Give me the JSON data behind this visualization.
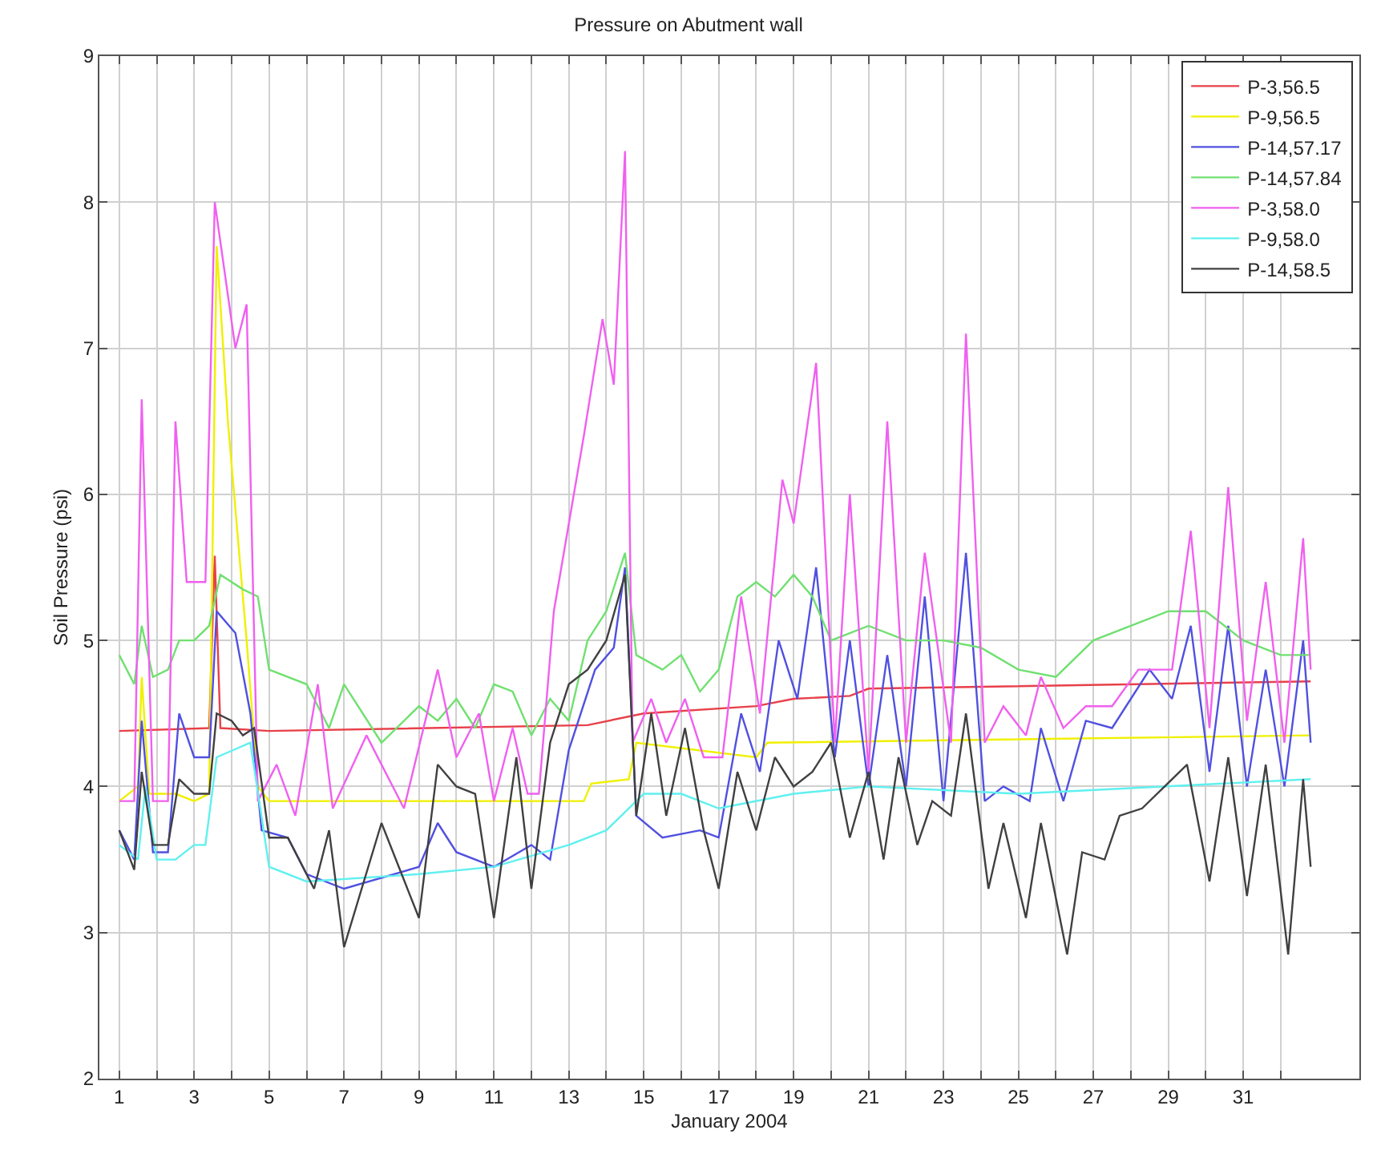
{
  "chart_data": {
    "type": "line",
    "title": "Pressure on Abutment wall",
    "xlabel": "January 2004",
    "ylabel": "Soil Pressure (psi)",
    "xlim": [
      0.47,
      34.1
    ],
    "ylim": [
      2,
      9
    ],
    "yticks": [
      2,
      3,
      4,
      5,
      6,
      7,
      8,
      9
    ],
    "xticks": [
      1,
      {
        "value": 2,
        "label": null
      },
      3,
      {
        "value": 4,
        "label": null
      },
      5,
      {
        "value": 6,
        "label": null
      },
      7,
      {
        "value": 8,
        "label": null
      },
      9,
      {
        "value": 10,
        "label": null
      },
      11,
      {
        "value": 12,
        "label": null
      },
      13,
      {
        "value": 14,
        "label": null
      },
      15,
      {
        "value": 16,
        "label": null
      },
      17,
      {
        "value": 18,
        "label": null
      },
      19,
      {
        "value": 20,
        "label": null
      },
      21,
      {
        "value": 22,
        "label": null
      },
      23,
      {
        "value": 24,
        "label": null
      },
      25,
      {
        "value": 26,
        "label": null
      },
      27,
      {
        "value": 28,
        "label": null
      },
      29,
      {
        "value": 30,
        "label": null
      },
      31,
      {
        "value": 32,
        "label": null
      }
    ],
    "grid": true,
    "legend": "top right",
    "marker": "none",
    "line_style": "solid",
    "series": [
      {
        "name": "P-3,56.5",
        "color": "#e8404a",
        "x": [
          1,
          3.4,
          3.55,
          3.7,
          5,
          13.5,
          15,
          18,
          19,
          20.5,
          21,
          32.8
        ],
        "values": [
          4.38,
          4.4,
          5.58,
          4.4,
          4.38,
          4.42,
          4.5,
          4.55,
          4.6,
          4.62,
          4.67,
          4.72
        ]
      },
      {
        "name": "P-9,56.5",
        "color": "#f0f000",
        "x": [
          1,
          1.5,
          1.6,
          1.8,
          2.5,
          3,
          3.4,
          3.6,
          3.9,
          4.4,
          4.7,
          5,
          13.4,
          13.6,
          14.6,
          14.8,
          18,
          18.3,
          32.8
        ],
        "values": [
          3.9,
          4.0,
          4.75,
          3.95,
          3.95,
          3.9,
          3.95,
          7.7,
          6.5,
          5.0,
          4.0,
          3.9,
          3.9,
          4.02,
          4.05,
          4.3,
          4.2,
          4.3,
          4.35
        ]
      },
      {
        "name": "P-14,57.17",
        "color": "#5050e0",
        "x": [
          1,
          1.4,
          1.6,
          1.9,
          2.3,
          2.6,
          3,
          3.4,
          3.6,
          4.1,
          4.5,
          4.8,
          5.5,
          6,
          7,
          9,
          9.5,
          10,
          11,
          12,
          12.5,
          13,
          13.7,
          14.2,
          14.5,
          14.8,
          15.5,
          16.5,
          17,
          17.6,
          18.1,
          18.6,
          19.1,
          19.6,
          20.1,
          20.5,
          21,
          21.5,
          22,
          22.5,
          23,
          23.6,
          24.1,
          24.6,
          25.3,
          25.6,
          26.2,
          26.8,
          27.5,
          28.5,
          29.1,
          29.6,
          30.1,
          30.6,
          31.1,
          31.6,
          32.1,
          32.6,
          32.8
        ],
        "values": [
          3.7,
          3.5,
          4.45,
          3.55,
          3.55,
          4.5,
          4.2,
          4.2,
          5.2,
          5.05,
          4.5,
          3.7,
          3.65,
          3.4,
          3.3,
          3.45,
          3.75,
          3.55,
          3.45,
          3.6,
          3.5,
          4.25,
          4.8,
          4.95,
          5.5,
          3.8,
          3.65,
          3.7,
          3.65,
          4.5,
          4.1,
          5.0,
          4.6,
          5.5,
          4.2,
          5.0,
          4.0,
          4.9,
          4.0,
          5.3,
          3.9,
          5.6,
          3.9,
          4.0,
          3.9,
          4.4,
          3.9,
          4.45,
          4.4,
          4.8,
          4.6,
          5.1,
          4.1,
          5.1,
          4.0,
          4.8,
          4.0,
          5.0,
          4.3
        ]
      },
      {
        "name": "P-14,57.84",
        "color": "#70e070",
        "x": [
          1,
          1.4,
          1.6,
          1.9,
          2.3,
          2.6,
          3,
          3.4,
          3.7,
          4.3,
          4.7,
          5,
          6,
          6.6,
          7,
          8,
          9,
          9.5,
          10,
          10.5,
          11,
          11.5,
          12,
          12.5,
          13,
          13.5,
          14,
          14.5,
          14.8,
          15.5,
          16,
          16.5,
          17,
          17.5,
          18,
          18.5,
          19,
          19.5,
          20,
          21,
          22,
          23,
          24,
          25,
          26,
          27,
          28,
          29,
          30,
          31,
          32,
          32.8
        ],
        "values": [
          4.9,
          4.7,
          5.1,
          4.75,
          4.8,
          5.0,
          5.0,
          5.1,
          5.45,
          5.35,
          5.3,
          4.8,
          4.7,
          4.4,
          4.7,
          4.3,
          4.55,
          4.45,
          4.6,
          4.4,
          4.7,
          4.65,
          4.35,
          4.6,
          4.45,
          5.0,
          5.2,
          5.6,
          4.9,
          4.8,
          4.9,
          4.65,
          4.8,
          5.3,
          5.4,
          5.3,
          5.45,
          5.3,
          5.0,
          5.1,
          5.0,
          5.0,
          4.95,
          4.8,
          4.75,
          5.0,
          5.1,
          5.2,
          5.2,
          5.0,
          4.9,
          4.9
        ]
      },
      {
        "name": "P-3,58.0",
        "color": "#f060f0",
        "x": [
          1,
          1.4,
          1.6,
          1.9,
          2.3,
          2.5,
          2.8,
          3.3,
          3.55,
          4.1,
          4.4,
          4.7,
          5.2,
          5.7,
          6.3,
          6.7,
          7.6,
          8.6,
          9.5,
          10,
          10.6,
          11,
          11.5,
          11.9,
          12.2,
          12.6,
          13.4,
          13.9,
          14.2,
          14.5,
          14.7,
          15.2,
          15.6,
          16.1,
          16.6,
          17.1,
          17.6,
          18.1,
          18.7,
          19,
          19.6,
          20.1,
          20.5,
          21,
          21.5,
          22,
          22.5,
          23.2,
          23.6,
          24.1,
          24.6,
          25.2,
          25.6,
          26.2,
          26.8,
          27.5,
          28.2,
          29.1,
          29.6,
          30.1,
          30.6,
          31.1,
          31.6,
          32.1,
          32.6,
          32.8
        ],
        "values": [
          3.9,
          3.9,
          6.65,
          3.9,
          3.9,
          6.5,
          5.4,
          5.4,
          8.0,
          7.0,
          7.3,
          3.9,
          4.15,
          3.8,
          4.7,
          3.85,
          4.35,
          3.85,
          4.8,
          4.2,
          4.5,
          3.9,
          4.4,
          3.95,
          3.95,
          5.2,
          6.4,
          7.2,
          6.75,
          8.35,
          4.3,
          4.6,
          4.3,
          4.6,
          4.2,
          4.2,
          5.3,
          4.5,
          6.1,
          5.8,
          6.9,
          4.3,
          6.0,
          4.1,
          6.5,
          4.3,
          5.6,
          4.3,
          7.1,
          4.3,
          4.55,
          4.35,
          4.75,
          4.4,
          4.55,
          4.55,
          4.8,
          4.8,
          5.75,
          4.4,
          6.05,
          4.45,
          5.4,
          4.3,
          5.7,
          4.8
        ]
      },
      {
        "name": "P-9,58.0",
        "color": "#60f0f0",
        "x": [
          1,
          1.5,
          1.7,
          2,
          2.5,
          3,
          3.3,
          3.6,
          4.5,
          5,
          6,
          9,
          11,
          13,
          14,
          15,
          16,
          17,
          19,
          21,
          25,
          32.8
        ],
        "values": [
          3.6,
          3.5,
          4.0,
          3.5,
          3.5,
          3.6,
          3.6,
          4.2,
          4.3,
          3.45,
          3.35,
          3.4,
          3.45,
          3.6,
          3.7,
          3.95,
          3.95,
          3.85,
          3.95,
          4.0,
          3.95,
          4.05
        ]
      },
      {
        "name": "P-14,58.5",
        "color": "#404040",
        "x": [
          1,
          1.4,
          1.6,
          1.9,
          2.3,
          2.6,
          3,
          3.4,
          3.6,
          4,
          4.3,
          4.6,
          5,
          5.5,
          6.2,
          6.6,
          7,
          8,
          9,
          9.5,
          10,
          10.5,
          11,
          11.6,
          12,
          12.5,
          13,
          13.5,
          14,
          14.5,
          14.8,
          15.2,
          15.6,
          16.1,
          16.6,
          17,
          17.5,
          18,
          18.5,
          19,
          19.5,
          20,
          20.5,
          21,
          21.4,
          21.8,
          22.3,
          22.7,
          23.2,
          23.6,
          24.2,
          24.6,
          25.2,
          25.6,
          26.3,
          26.7,
          27.3,
          27.7,
          28.3,
          29.1,
          29.5,
          30.1,
          30.6,
          31.1,
          31.6,
          32.2,
          32.6,
          32.8
        ],
        "values": [
          3.7,
          3.43,
          4.1,
          3.6,
          3.6,
          4.05,
          3.95,
          3.95,
          4.5,
          4.45,
          4.35,
          4.4,
          3.65,
          3.65,
          3.3,
          3.7,
          2.9,
          3.75,
          3.1,
          4.15,
          4.0,
          3.95,
          3.1,
          4.2,
          3.3,
          4.3,
          4.7,
          4.8,
          5.0,
          5.45,
          3.8,
          4.5,
          3.8,
          4.4,
          3.7,
          3.3,
          4.1,
          3.7,
          4.2,
          4.0,
          4.1,
          4.3,
          3.65,
          4.1,
          3.5,
          4.2,
          3.6,
          3.9,
          3.8,
          4.5,
          3.3,
          3.75,
          3.1,
          3.75,
          2.85,
          3.55,
          3.5,
          3.8,
          3.85,
          4.05,
          4.15,
          3.35,
          4.2,
          3.25,
          4.15,
          2.85,
          4.05,
          3.45
        ]
      }
    ]
  }
}
